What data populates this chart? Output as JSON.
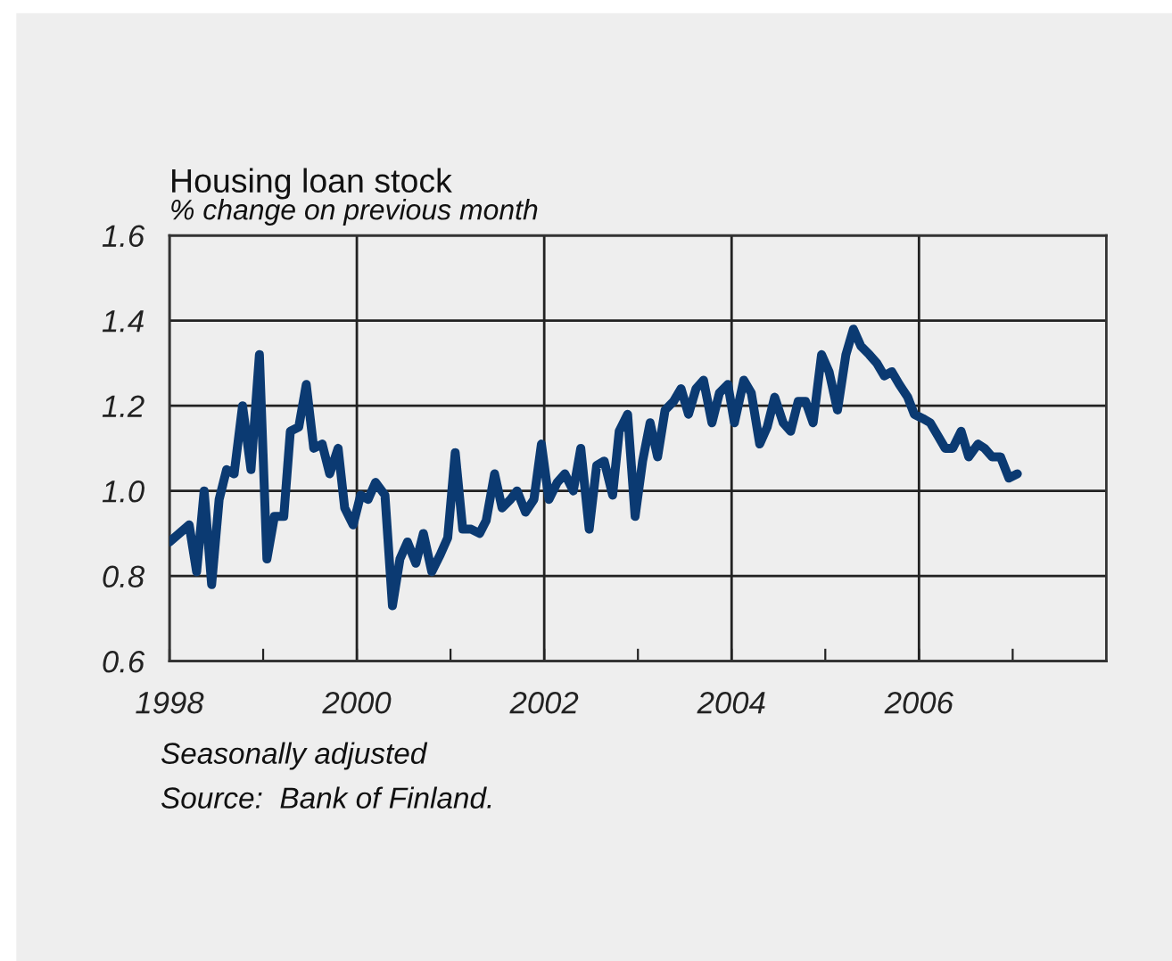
{
  "chart_data": {
    "type": "line",
    "title": "Housing loan stock",
    "ylabel": "% change on previous month",
    "annotations": [
      "Seasonally adjusted",
      "Source:  Bank of Finland."
    ],
    "series": [
      {
        "color": "#0b3a72",
        "x": [
          1998.0,
          1998.21,
          1998.29,
          1998.37,
          1998.45,
          1998.53,
          1998.61,
          1998.69,
          1998.78,
          1998.87,
          1998.96,
          1999.04,
          1999.12,
          1999.22,
          1999.29,
          1999.38,
          1999.46,
          1999.54,
          1999.63,
          1999.71,
          1999.8,
          1999.87,
          1999.96,
          2000.04,
          2000.12,
          2000.2,
          2000.3,
          2000.38,
          2000.46,
          2000.54,
          2000.63,
          2000.71,
          2000.8,
          2000.89,
          2000.97,
          2001.05,
          2001.13,
          2001.22,
          2001.31,
          2001.38,
          2001.47,
          2001.55,
          2001.64,
          2001.71,
          2001.8,
          2001.89,
          2001.97,
          2002.05,
          2002.14,
          2002.22,
          2002.31,
          2002.39,
          2002.48,
          2002.56,
          2002.64,
          2002.73,
          2002.8,
          2002.89,
          2002.97,
          2003.05,
          2003.13,
          2003.21,
          2003.29,
          2003.38,
          2003.46,
          2003.54,
          2003.62,
          2003.7,
          2003.79,
          2003.87,
          2003.96,
          2004.03,
          2004.13,
          2004.21,
          2004.3,
          2004.38,
          2004.46,
          2004.55,
          2004.63,
          2004.71,
          2004.79,
          2004.87,
          2004.96,
          2005.04,
          2005.13,
          2005.22,
          2005.3,
          2005.38,
          2005.47,
          2005.55,
          2005.63,
          2005.71,
          2005.79,
          2005.88,
          2005.95,
          2006.04,
          2006.12,
          2006.2,
          2006.28,
          2006.36,
          2006.45,
          2006.53,
          2006.63,
          2006.7,
          2006.78,
          2006.87,
          2006.96,
          2007.05
        ],
        "values": [
          0.88,
          0.92,
          0.81,
          1.0,
          0.78,
          0.98,
          1.05,
          1.04,
          1.2,
          1.05,
          1.32,
          0.84,
          0.94,
          0.94,
          1.14,
          1.15,
          1.25,
          1.1,
          1.11,
          1.04,
          1.1,
          0.96,
          0.92,
          0.99,
          0.98,
          1.02,
          0.99,
          0.73,
          0.84,
          0.88,
          0.83,
          0.9,
          0.81,
          0.85,
          0.89,
          1.09,
          0.91,
          0.91,
          0.9,
          0.93,
          1.04,
          0.96,
          0.98,
          1.0,
          0.95,
          0.98,
          1.11,
          0.98,
          1.02,
          1.04,
          1.0,
          1.1,
          0.91,
          1.06,
          1.07,
          0.99,
          1.14,
          1.18,
          0.94,
          1.07,
          1.16,
          1.08,
          1.19,
          1.21,
          1.24,
          1.18,
          1.24,
          1.26,
          1.16,
          1.23,
          1.25,
          1.16,
          1.26,
          1.23,
          1.11,
          1.15,
          1.22,
          1.16,
          1.14,
          1.21,
          1.21,
          1.16,
          1.32,
          1.28,
          1.19,
          1.32,
          1.38,
          1.34,
          1.32,
          1.3,
          1.27,
          1.28,
          1.25,
          1.22,
          1.18,
          1.17,
          1.16,
          1.13,
          1.1,
          1.1,
          1.14,
          1.08,
          1.11,
          1.1,
          1.08,
          1.08,
          1.03,
          1.04
        ]
      }
    ],
    "xlim": [
      1998,
      2008
    ],
    "xticks": [
      1998,
      {
        "value": 1999,
        "label": null
      },
      2000,
      {
        "value": 2001,
        "label": null
      },
      2002,
      {
        "value": 2003,
        "label": null
      },
      2004,
      {
        "value": 2005,
        "label": null
      },
      2006,
      {
        "value": 2007,
        "label": null
      }
    ],
    "ylim": [
      0.6,
      1.6
    ],
    "yticks": [
      0.6,
      0.8,
      {
        "value": 1.0,
        "label": "1.0"
      },
      1.2,
      1.4,
      1.6
    ],
    "grid": true,
    "legend": false,
    "marker": "none",
    "line_style": "solid"
  }
}
